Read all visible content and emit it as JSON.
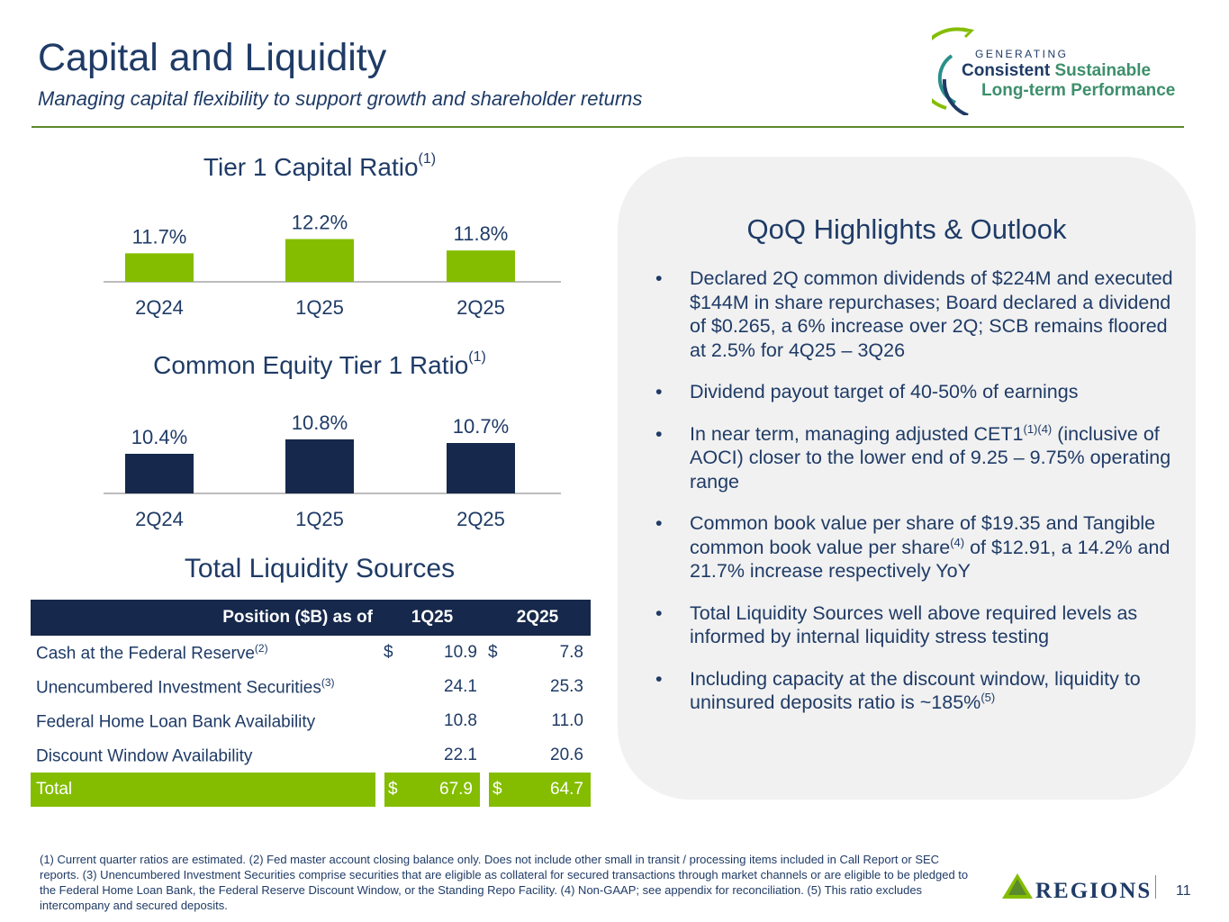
{
  "header": {
    "title": "Capital and Liquidity",
    "subtitle": "Managing capital flexibility to support growth and shareholder returns"
  },
  "tagline": {
    "line1": "GENERATING",
    "line2a": "Consistent",
    "line2b": "Sustainable",
    "line3": "Long-term Performance"
  },
  "chart_data": [
    {
      "type": "bar",
      "title": "Tier 1 Capital Ratio",
      "title_note": "(1)",
      "categories": [
        "2Q24",
        "1Q25",
        "2Q25"
      ],
      "values": [
        11.7,
        12.2,
        11.8
      ],
      "value_labels": [
        "11.7%",
        "12.2%",
        "11.8%"
      ],
      "color": "#84bd00",
      "ylim": [
        10.7,
        12.5
      ]
    },
    {
      "type": "bar",
      "title": "Common Equity Tier 1 Ratio",
      "title_note": "(1)",
      "categories": [
        "2Q24",
        "1Q25",
        "2Q25"
      ],
      "values": [
        10.4,
        10.8,
        10.7
      ],
      "value_labels": [
        "10.4%",
        "10.8%",
        "10.7%"
      ],
      "color": "#16284b",
      "ylim": [
        9.3,
        11.1
      ]
    }
  ],
  "liquidity": {
    "title": "Total Liquidity Sources",
    "header": {
      "label": "Position ($B) as of",
      "col1": "1Q25",
      "col2": "2Q25"
    },
    "rows": [
      {
        "label": "Cash at the Federal Reserve",
        "note": "(2)",
        "d1": "$",
        "v1": "10.9",
        "d2": "$",
        "v2": "7.8"
      },
      {
        "label": "Unencumbered Investment Securities",
        "note": "(3)",
        "d1": "",
        "v1": "24.1",
        "d2": "",
        "v2": "25.3"
      },
      {
        "label": "Federal Home Loan Bank Availability",
        "note": "",
        "d1": "",
        "v1": "10.8",
        "d2": "",
        "v2": "11.0"
      },
      {
        "label": "Discount Window Availability",
        "note": "",
        "d1": "",
        "v1": "22.1",
        "d2": "",
        "v2": "20.6"
      }
    ],
    "total": {
      "label": "Total",
      "d1": "$",
      "v1": "67.9",
      "d2": "$",
      "v2": "64.7"
    }
  },
  "highlights": {
    "title": "QoQ Highlights & Outlook",
    "bullet": "•",
    "items": [
      {
        "text": "Declared 2Q common dividends of $224M and executed $144M in share repurchases; Board declared a dividend of $0.265, a 6% increase over 2Q; SCB remains floored at 2.5% for 4Q25 – 3Q26"
      },
      {
        "text": "Dividend payout target of 40-50% of earnings"
      },
      {
        "pre": "In near term, managing adjusted CET1",
        "note": "(1)(4)",
        "post": " (inclusive of AOCI) closer to the lower end of 9.25 – 9.75% operating range"
      },
      {
        "pre": "Common book value per share of $19.35 and Tangible common book value per share",
        "note": "(4)",
        "post": " of $12.91, a 14.2% and 21.7% increase respectively YoY"
      },
      {
        "text": "Total Liquidity Sources well above required levels as informed by internal liquidity stress testing"
      },
      {
        "pre": "Including capacity at the discount window, liquidity to uninsured deposits ratio is ~185%",
        "note": "(5)",
        "post": ""
      }
    ]
  },
  "footnote": "(1) Current quarter ratios are estimated.  (2) Fed master account closing balance only. Does not include other small in transit / processing items included in Call Report or SEC reports. (3) Unencumbered Investment Securities comprise securities that are eligible as collateral for secured transactions through market channels or are eligible to be pledged to the Federal Home Loan Bank, the Federal Reserve Discount Window, or the Standing Repo Facility. (4) Non-GAAP; see appendix for reconciliation. (5) This ratio excludes intercompany and secured deposits.",
  "brand": {
    "name": "REGIONS",
    "page": "11"
  }
}
